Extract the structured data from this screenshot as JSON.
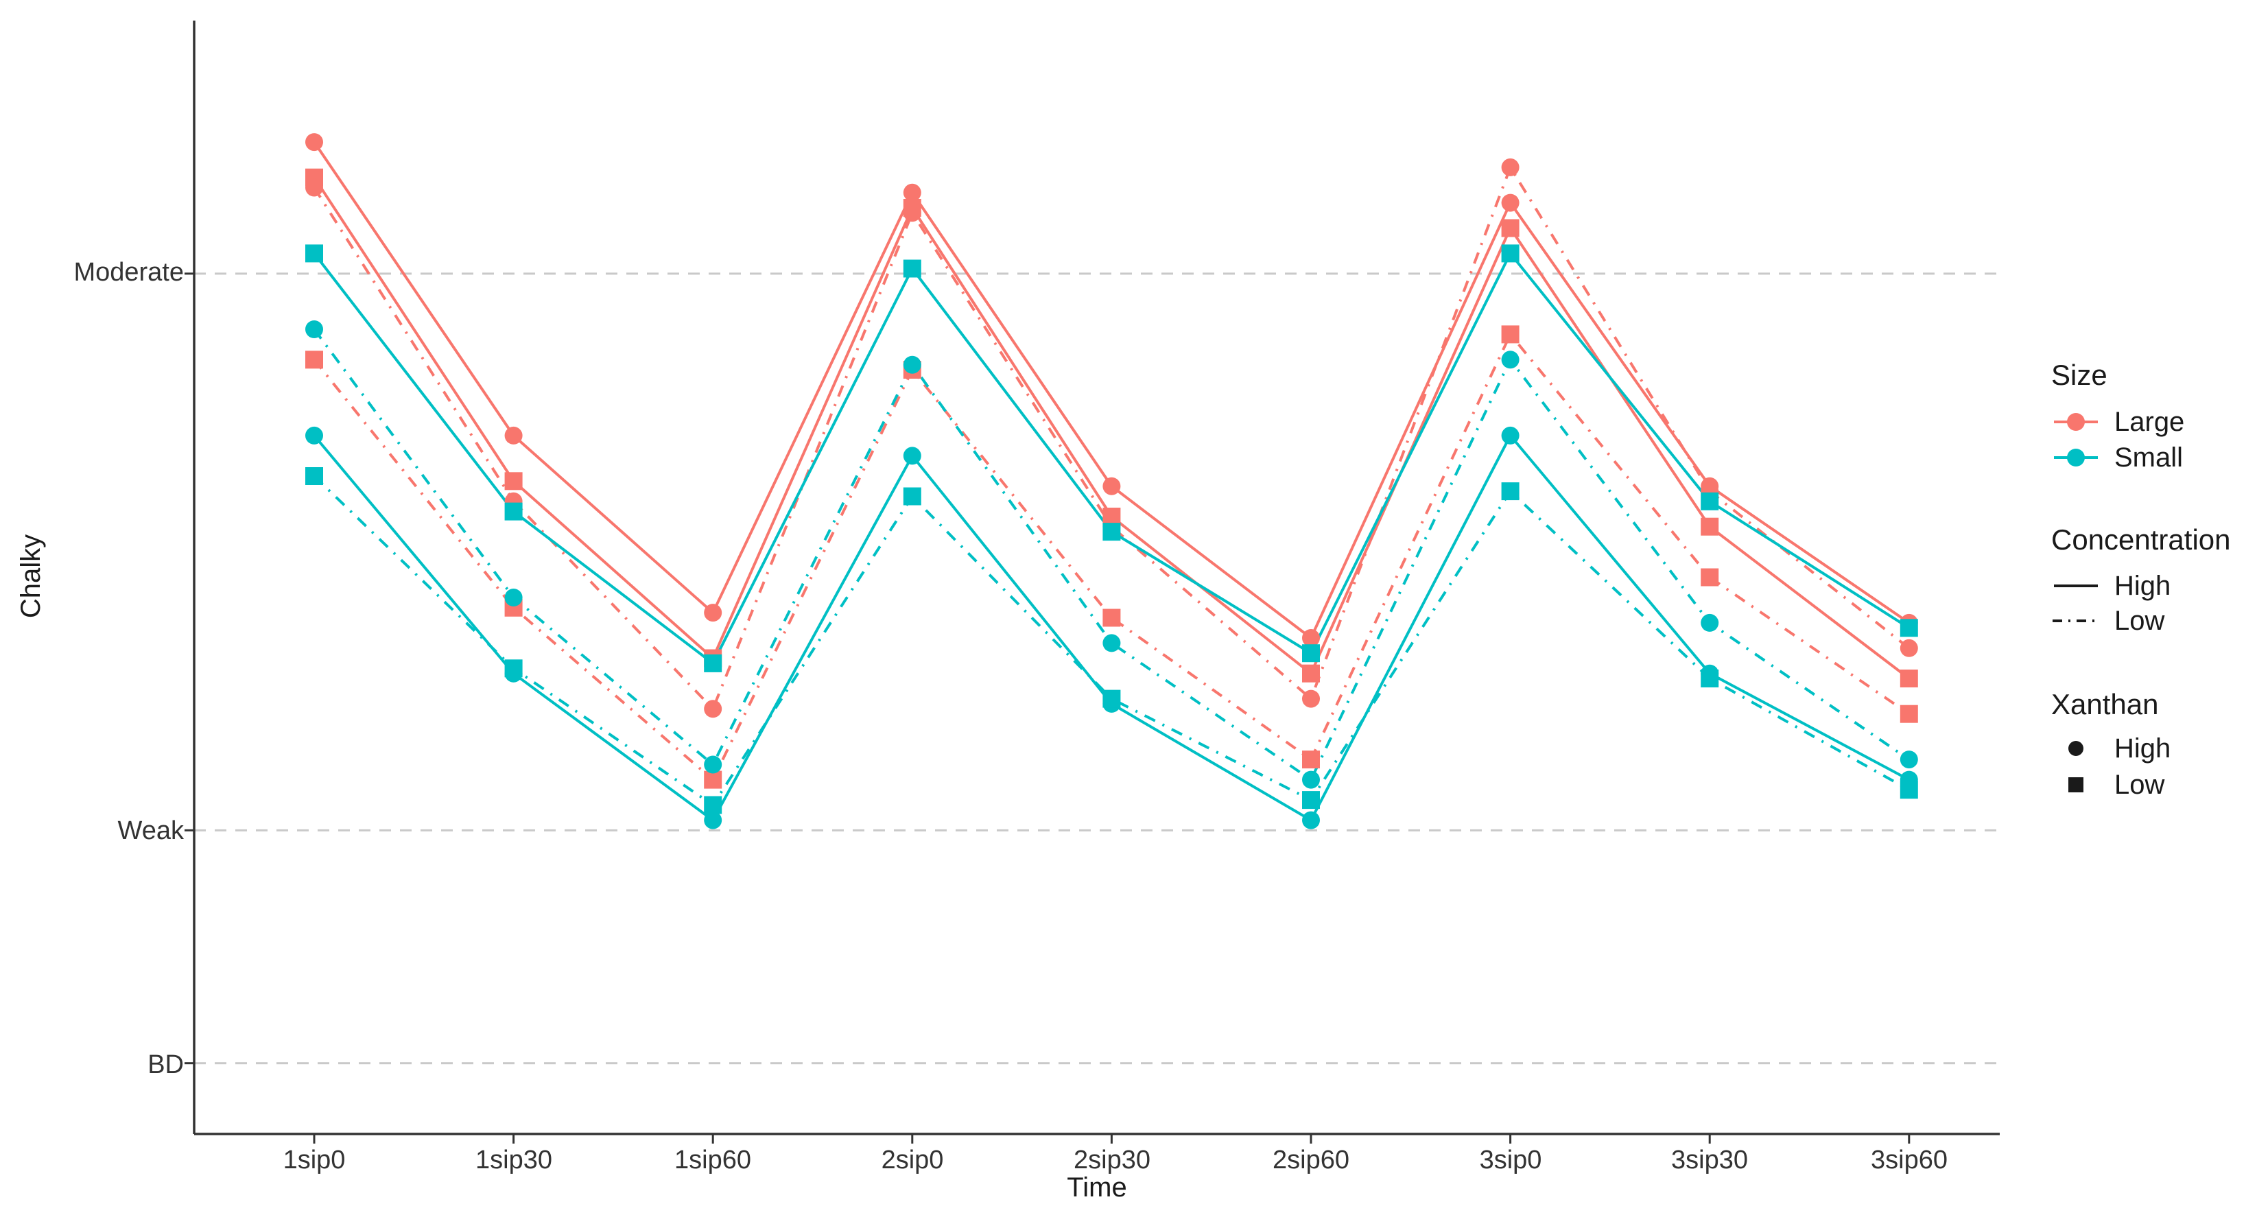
{
  "figure": {
    "background": "#ffffff",
    "accent_colors": {
      "large": "#F8766D",
      "small": "#00BFC4"
    }
  },
  "chart_data": {
    "type": "line",
    "title": "",
    "xlabel": "Time",
    "ylabel": "Chalky",
    "categories": [
      "1sip0",
      "1sip30",
      "1sip60",
      "2sip0",
      "2sip30",
      "2sip60",
      "3sip0",
      "3sip30",
      "3sip60"
    ],
    "y_axis": {
      "ylim": [
        0,
        22
      ],
      "gridline_style": "dashed",
      "ticks": [
        {
          "label": "Moderate",
          "value": 17
        },
        {
          "label": "Weak",
          "value": 6
        },
        {
          "label": "BD",
          "value": 1.4
        }
      ]
    },
    "series": [
      {
        "id": "large-high-high",
        "size": "Large",
        "concentration": "High",
        "xanthan": "High",
        "color": "#F8766D",
        "line": "solid",
        "marker": "circle",
        "values": [
          19.6,
          13.8,
          10.3,
          18.6,
          12.8,
          9.8,
          18.4,
          12.8,
          10.1
        ]
      },
      {
        "id": "large-high-low",
        "size": "Large",
        "concentration": "High",
        "xanthan": "Low",
        "color": "#F8766D",
        "line": "solid",
        "marker": "square",
        "values": [
          18.9,
          12.9,
          9.4,
          18.3,
          12.2,
          9.1,
          17.9,
          12.0,
          9.0
        ]
      },
      {
        "id": "large-low-high",
        "size": "Large",
        "concentration": "Low",
        "xanthan": "High",
        "color": "#F8766D",
        "line": "dashdot",
        "marker": "circle",
        "values": [
          18.7,
          12.5,
          8.4,
          18.2,
          12.0,
          8.6,
          19.1,
          12.7,
          9.6
        ]
      },
      {
        "id": "large-low-low",
        "size": "Large",
        "concentration": "Low",
        "xanthan": "Low",
        "color": "#F8766D",
        "line": "dashdot",
        "marker": "square",
        "values": [
          15.3,
          10.4,
          7.0,
          15.1,
          10.2,
          7.4,
          15.8,
          11.0,
          8.3
        ]
      },
      {
        "id": "small-high-high",
        "size": "Small",
        "concentration": "High",
        "xanthan": "High",
        "color": "#00BFC4",
        "line": "solid",
        "marker": "circle",
        "values": [
          13.8,
          9.1,
          6.2,
          13.4,
          8.5,
          6.2,
          13.8,
          9.1,
          7.0
        ]
      },
      {
        "id": "small-low-high",
        "size": "Small",
        "concentration": "Low",
        "xanthan": "High",
        "color": "#00BFC4",
        "line": "dashdot",
        "marker": "circle",
        "values": [
          15.9,
          10.6,
          7.3,
          15.2,
          9.7,
          7.0,
          15.3,
          10.1,
          7.4
        ]
      },
      {
        "id": "small-low-low",
        "size": "Small",
        "concentration": "Low",
        "xanthan": "Low",
        "color": "#00BFC4",
        "line": "dashdot",
        "marker": "square",
        "values": [
          13.0,
          9.2,
          6.5,
          12.6,
          8.6,
          6.6,
          12.7,
          9.0,
          6.8
        ]
      },
      {
        "id": "small-high-low",
        "size": "Small",
        "concentration": "High",
        "xanthan": "Low",
        "color": "#00BFC4",
        "line": "solid",
        "marker": "square",
        "values": [
          17.4,
          12.3,
          9.3,
          17.1,
          11.9,
          9.5,
          17.4,
          12.5,
          10.0
        ]
      }
    ],
    "legend": {
      "position": "right",
      "groups": [
        {
          "title": "Size",
          "entries": [
            {
              "label": "Large",
              "color": "#F8766D"
            },
            {
              "label": "Small",
              "color": "#00BFC4"
            }
          ]
        },
        {
          "title": "Concentration",
          "entries": [
            {
              "label": "High",
              "line": "solid"
            },
            {
              "label": "Low",
              "line": "dashdot"
            }
          ]
        },
        {
          "title": "Xanthan",
          "entries": [
            {
              "label": "High",
              "marker": "circle"
            },
            {
              "label": "Low",
              "marker": "square"
            }
          ]
        }
      ]
    }
  }
}
